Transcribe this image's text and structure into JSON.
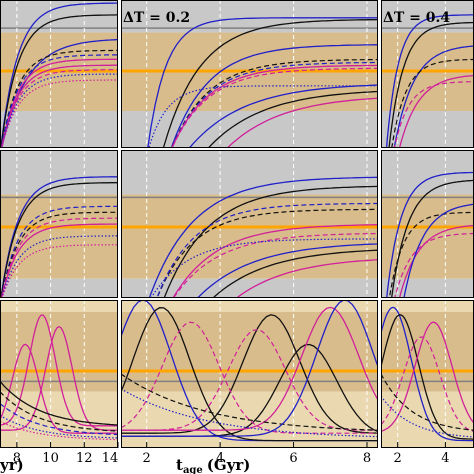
{
  "figure": {
    "x_axis_label": "t",
    "x_axis_label_sub": "age",
    "x_axis_label_unit": "(Gyr)",
    "left_partial_label": "yr)"
  },
  "colors": {
    "band_tan": "#d9bc8c",
    "band_grey": "#c8c8c8",
    "band_light": "#ead9b0",
    "orange_line": "#ffa500",
    "blue": "#2020c8",
    "black": "#111111",
    "magenta": "#d0209a",
    "dashed_vline": "#ffffff",
    "grey_line": "#808080"
  },
  "chart_data": [
    {
      "type": "line",
      "panel": "row1-col1",
      "xlim": [
        7,
        14
      ],
      "xticks": [
        8,
        10,
        12,
        14
      ],
      "annotation": "",
      "bands": [
        {
          "from": 0.0,
          "to": 0.22,
          "kind": "grey"
        },
        {
          "from": 0.22,
          "to": 0.75,
          "kind": "tan"
        },
        {
          "from": 0.75,
          "to": 1.0,
          "kind": "grey"
        }
      ],
      "hline": 0.48,
      "hline2": 0.19,
      "series": [
        {
          "color": "blue",
          "style": "solid",
          "shape": "saturate",
          "level": 0.02,
          "rise": 7.0,
          "tau": 1.0
        },
        {
          "color": "black",
          "style": "solid",
          "shape": "saturate",
          "level": 0.1,
          "rise": 7.0,
          "tau": 1.0
        },
        {
          "color": "blue",
          "style": "solid",
          "shape": "saturate",
          "level": 0.26,
          "rise": 7.0,
          "tau": 1.5
        },
        {
          "color": "magenta",
          "style": "solid",
          "shape": "saturate",
          "level": 0.4,
          "rise": 7.0,
          "tau": 1.0
        },
        {
          "color": "magenta",
          "style": "solid",
          "shape": "saturate",
          "level": 0.44,
          "rise": 7.0,
          "tau": 1.0
        },
        {
          "color": "black",
          "style": "dashed",
          "shape": "saturate",
          "level": 0.34,
          "rise": 7.0,
          "tau": 1.0
        },
        {
          "color": "blue",
          "style": "dashed",
          "shape": "saturate",
          "level": 0.37,
          "rise": 7.0,
          "tau": 1.0
        },
        {
          "color": "magenta",
          "style": "dashed",
          "shape": "saturate",
          "level": 0.47,
          "rise": 7.0,
          "tau": 1.0
        },
        {
          "color": "blue",
          "style": "dotted",
          "shape": "saturate",
          "level": 0.5,
          "rise": 7.0,
          "tau": 1.0
        },
        {
          "color": "magenta",
          "style": "dotted",
          "shape": "saturate",
          "level": 0.54,
          "rise": 7.0,
          "tau": 1.0
        }
      ]
    },
    {
      "type": "line",
      "panel": "row1-col2",
      "xlim": [
        1.3,
        8.3
      ],
      "xticks": [
        2,
        4,
        6,
        8
      ],
      "annotation": "ΔT = 0.2",
      "bands": [
        {
          "from": 0.0,
          "to": 0.22,
          "kind": "grey"
        },
        {
          "from": 0.22,
          "to": 0.75,
          "kind": "tan"
        },
        {
          "from": 0.75,
          "to": 1.0,
          "kind": "grey"
        }
      ],
      "hline": 0.48,
      "hline2": 0.19,
      "series": [
        {
          "color": "blue",
          "style": "solid",
          "shape": "saturate",
          "level": 0.12,
          "rise": 2.0,
          "tau": 0.5
        },
        {
          "color": "black",
          "style": "solid",
          "shape": "saturate",
          "level": 0.13,
          "rise": 2.4,
          "tau": 1.0
        },
        {
          "color": "blue",
          "style": "solid",
          "shape": "saturate",
          "level": 0.3,
          "rise": 2.6,
          "tau": 1.0
        },
        {
          "color": "black",
          "style": "dashed",
          "shape": "saturate",
          "level": 0.4,
          "rise": 2.6,
          "tau": 1.0
        },
        {
          "color": "blue",
          "style": "dashed",
          "shape": "saturate",
          "level": 0.42,
          "rise": 2.6,
          "tau": 1.0
        },
        {
          "color": "magenta",
          "style": "dashed",
          "shape": "saturate",
          "level": 0.46,
          "rise": 2.6,
          "tau": 1.0
        },
        {
          "color": "magenta",
          "style": "solid",
          "shape": "saturate",
          "level": 0.44,
          "rise": 2.6,
          "tau": 1.0
        },
        {
          "color": "blue",
          "style": "solid",
          "shape": "saturate",
          "level": 0.56,
          "rise": 3.0,
          "tau": 1.5
        },
        {
          "color": "black",
          "style": "solid",
          "shape": "saturate",
          "level": 0.6,
          "rise": 3.5,
          "tau": 1.5
        },
        {
          "color": "magenta",
          "style": "solid",
          "shape": "saturate",
          "level": 0.64,
          "rise": 4.0,
          "tau": 1.5
        },
        {
          "color": "blue",
          "style": "dotted",
          "shape": "saturate",
          "level": 0.58,
          "rise": 2.0,
          "tau": 0.5
        }
      ]
    },
    {
      "type": "line",
      "panel": "row1-col3",
      "xlim": [
        1.3,
        5.2
      ],
      "xticks": [
        2,
        4
      ],
      "annotation": "ΔT = 0.4",
      "bands": [
        {
          "from": 0.0,
          "to": 0.22,
          "kind": "grey"
        },
        {
          "from": 0.22,
          "to": 0.75,
          "kind": "tan"
        },
        {
          "from": 0.75,
          "to": 1.0,
          "kind": "grey"
        }
      ],
      "hline": 0.48,
      "hline2": 0.19,
      "series": [
        {
          "color": "blue",
          "style": "solid",
          "shape": "saturate",
          "level": 0.1,
          "rise": 1.5,
          "tau": 0.5
        },
        {
          "color": "black",
          "style": "solid",
          "shape": "saturate",
          "level": 0.15,
          "rise": 1.6,
          "tau": 0.6
        },
        {
          "color": "blue",
          "style": "solid",
          "shape": "saturate",
          "level": 0.3,
          "rise": 1.8,
          "tau": 0.8
        },
        {
          "color": "black",
          "style": "dashed",
          "shape": "saturate",
          "level": 0.4,
          "rise": 1.7,
          "tau": 0.6
        },
        {
          "color": "magenta",
          "style": "solid",
          "shape": "saturate",
          "level": 0.5,
          "rise": 2.0,
          "tau": 0.8
        },
        {
          "color": "magenta",
          "style": "dashed",
          "shape": "saturate",
          "level": 0.55,
          "rise": 1.8,
          "tau": 0.6
        }
      ]
    },
    {
      "type": "line",
      "panel": "row2-col1",
      "xlim": [
        7,
        14
      ],
      "xticks": [
        8,
        10,
        12,
        14
      ],
      "annotation": "",
      "bands": [
        {
          "from": 0.0,
          "to": 0.3,
          "kind": "grey"
        },
        {
          "from": 0.3,
          "to": 0.87,
          "kind": "tan"
        },
        {
          "from": 0.87,
          "to": 1.0,
          "kind": "grey"
        }
      ],
      "hline": 0.52,
      "hline2": 0.32,
      "series": [
        {
          "color": "blue",
          "style": "solid",
          "shape": "saturate",
          "level": 0.18,
          "rise": 7.0,
          "tau": 1.0
        },
        {
          "color": "black",
          "style": "solid",
          "shape": "saturate",
          "level": 0.22,
          "rise": 7.0,
          "tau": 1.0
        },
        {
          "color": "blue",
          "style": "dashed",
          "shape": "saturate",
          "level": 0.38,
          "rise": 7.0,
          "tau": 1.0
        },
        {
          "color": "black",
          "style": "dashed",
          "shape": "saturate",
          "level": 0.42,
          "rise": 7.0,
          "tau": 1.0
        },
        {
          "color": "magenta",
          "style": "solid",
          "shape": "saturate",
          "level": 0.5,
          "rise": 7.0,
          "tau": 1.0
        },
        {
          "color": "magenta",
          "style": "dashed",
          "shape": "saturate",
          "level": 0.46,
          "rise": 7.0,
          "tau": 1.0
        },
        {
          "color": "blue",
          "style": "dotted",
          "shape": "saturate",
          "level": 0.58,
          "rise": 7.0,
          "tau": 1.0
        },
        {
          "color": "magenta",
          "style": "dotted",
          "shape": "saturate",
          "level": 0.64,
          "rise": 7.0,
          "tau": 1.0
        }
      ]
    },
    {
      "type": "line",
      "panel": "row2-col2",
      "xlim": [
        1.3,
        8.3
      ],
      "xticks": [
        2,
        4,
        6,
        8
      ],
      "annotation": "",
      "bands": [
        {
          "from": 0.0,
          "to": 0.3,
          "kind": "grey"
        },
        {
          "from": 0.3,
          "to": 0.87,
          "kind": "tan"
        },
        {
          "from": 0.87,
          "to": 1.0,
          "kind": "grey"
        }
      ],
      "hline": 0.52,
      "hline2": 0.32,
      "series": [
        {
          "color": "blue",
          "style": "solid",
          "shape": "saturate",
          "level": 0.18,
          "rise": 2.0,
          "tau": 1.2
        },
        {
          "color": "black",
          "style": "solid",
          "shape": "saturate",
          "level": 0.24,
          "rise": 2.4,
          "tau": 1.2
        },
        {
          "color": "black",
          "style": "dashed",
          "shape": "saturate",
          "level": 0.4,
          "rise": 2.2,
          "tau": 1.0
        },
        {
          "color": "blue",
          "style": "dashed",
          "shape": "saturate",
          "level": 0.36,
          "rise": 2.2,
          "tau": 1.0
        },
        {
          "color": "magenta",
          "style": "solid",
          "shape": "saturate",
          "level": 0.5,
          "rise": 2.6,
          "tau": 1.2
        },
        {
          "color": "magenta",
          "style": "dashed",
          "shape": "saturate",
          "level": 0.56,
          "rise": 2.6,
          "tau": 1.2
        },
        {
          "color": "blue",
          "style": "solid",
          "shape": "saturate",
          "level": 0.62,
          "rise": 3.2,
          "tau": 1.5
        },
        {
          "color": "black",
          "style": "solid",
          "shape": "saturate",
          "level": 0.66,
          "rise": 3.6,
          "tau": 1.5
        },
        {
          "color": "magenta",
          "style": "solid",
          "shape": "saturate",
          "level": 0.72,
          "rise": 4.2,
          "tau": 1.5
        },
        {
          "color": "blue",
          "style": "dotted",
          "shape": "saturate",
          "level": 0.6,
          "rise": 2.0,
          "tau": 1.0
        }
      ]
    },
    {
      "type": "line",
      "panel": "row2-col3",
      "xlim": [
        1.3,
        5.2
      ],
      "xticks": [
        2,
        4
      ],
      "annotation": "",
      "bands": [
        {
          "from": 0.0,
          "to": 0.3,
          "kind": "grey"
        },
        {
          "from": 0.3,
          "to": 0.87,
          "kind": "tan"
        },
        {
          "from": 0.87,
          "to": 1.0,
          "kind": "grey"
        }
      ],
      "hline": 0.52,
      "hline2": 0.32,
      "series": [
        {
          "color": "blue",
          "style": "solid",
          "shape": "saturate",
          "level": 0.15,
          "rise": 1.5,
          "tau": 0.6
        },
        {
          "color": "black",
          "style": "solid",
          "shape": "saturate",
          "level": 0.2,
          "rise": 1.7,
          "tau": 0.7
        },
        {
          "color": "black",
          "style": "dashed",
          "shape": "saturate",
          "level": 0.42,
          "rise": 1.6,
          "tau": 0.6
        },
        {
          "color": "magenta",
          "style": "solid",
          "shape": "saturate",
          "level": 0.5,
          "rise": 2.0,
          "tau": 0.8
        },
        {
          "color": "magenta",
          "style": "dashed",
          "shape": "saturate",
          "level": 0.56,
          "rise": 1.8,
          "tau": 0.7
        },
        {
          "color": "blue",
          "style": "solid",
          "shape": "saturate",
          "level": 0.35,
          "rise": 2.2,
          "tau": 0.8
        }
      ]
    },
    {
      "type": "line",
      "panel": "row3-col1",
      "xlim": [
        7,
        14
      ],
      "xticks": [
        8,
        10,
        12,
        14
      ],
      "annotation": "",
      "bands": [
        {
          "from": 0.0,
          "to": 0.08,
          "kind": "light"
        },
        {
          "from": 0.08,
          "to": 0.62,
          "kind": "tan"
        },
        {
          "from": 0.62,
          "to": 1.0,
          "kind": "light"
        }
      ],
      "hline": 0.48,
      "hline2": 0.55,
      "series": [
        {
          "color": "magenta",
          "style": "solid",
          "shape": "peak",
          "peak": 9.5,
          "height": 0.1,
          "base": 0.85
        },
        {
          "color": "magenta",
          "style": "solid",
          "shape": "peak",
          "peak": 10.5,
          "height": 0.18,
          "base": 0.88
        },
        {
          "color": "magenta",
          "style": "solid",
          "shape": "peak",
          "peak": 8.5,
          "height": 0.3,
          "base": 0.9
        },
        {
          "color": "black",
          "style": "solid",
          "shape": "decay",
          "start": 0.55,
          "end": 0.86
        },
        {
          "color": "black",
          "style": "dashed",
          "shape": "decay",
          "start": 0.62,
          "end": 0.9
        },
        {
          "color": "blue",
          "style": "dashed",
          "shape": "decay",
          "start": 0.7,
          "end": 0.92
        },
        {
          "color": "blue",
          "style": "dotted",
          "shape": "decay",
          "start": 0.78,
          "end": 0.94
        },
        {
          "color": "magenta",
          "style": "dotted",
          "shape": "decay",
          "start": 0.82,
          "end": 0.95
        }
      ]
    },
    {
      "type": "line",
      "panel": "row3-col2",
      "xlim": [
        1.3,
        8.3
      ],
      "xticks": [
        2,
        4,
        6,
        8
      ],
      "annotation": "",
      "bands": [
        {
          "from": 0.0,
          "to": 0.08,
          "kind": "light"
        },
        {
          "from": 0.08,
          "to": 0.62,
          "kind": "tan"
        },
        {
          "from": 0.62,
          "to": 1.0,
          "kind": "light"
        }
      ],
      "hline": 0.48,
      "hline2": 0.55,
      "series": [
        {
          "color": "blue",
          "style": "solid",
          "shape": "peak",
          "peak": 1.9,
          "height": 0.0,
          "base": 0.95
        },
        {
          "color": "black",
          "style": "solid",
          "shape": "peak",
          "peak": 2.4,
          "height": 0.05,
          "base": 0.95
        },
        {
          "color": "black",
          "style": "solid",
          "shape": "peak",
          "peak": 5.4,
          "height": 0.1,
          "base": 0.9
        },
        {
          "color": "black",
          "style": "solid",
          "shape": "peak",
          "peak": 6.4,
          "height": 0.3,
          "base": 0.92
        },
        {
          "color": "magenta",
          "style": "solid",
          "shape": "peak",
          "peak": 7.0,
          "height": 0.05,
          "base": 0.88
        },
        {
          "color": "magenta",
          "style": "dashed",
          "shape": "peak",
          "peak": 3.2,
          "height": 0.15,
          "base": 0.9
        },
        {
          "color": "magenta",
          "style": "dashed",
          "shape": "peak",
          "peak": 5.0,
          "height": 0.2,
          "base": 0.88
        },
        {
          "color": "black",
          "style": "dashed",
          "shape": "decay",
          "start": 0.5,
          "end": 0.9
        },
        {
          "color": "blue",
          "style": "dotted",
          "shape": "decay",
          "start": 0.6,
          "end": 0.94
        },
        {
          "color": "blue",
          "style": "solid",
          "shape": "peak",
          "peak": 7.4,
          "height": 0.0,
          "base": 0.92
        }
      ]
    },
    {
      "type": "line",
      "panel": "row3-col3",
      "xlim": [
        1.3,
        5.2
      ],
      "xticks": [
        2,
        4
      ],
      "annotation": "",
      "bands": [
        {
          "from": 0.0,
          "to": 0.08,
          "kind": "light"
        },
        {
          "from": 0.08,
          "to": 0.62,
          "kind": "tan"
        },
        {
          "from": 0.62,
          "to": 1.0,
          "kind": "light"
        }
      ],
      "hline": 0.48,
      "hline2": 0.55,
      "series": [
        {
          "color": "blue",
          "style": "solid",
          "shape": "peak",
          "peak": 1.8,
          "height": 0.05,
          "base": 0.95
        },
        {
          "color": "black",
          "style": "solid",
          "shape": "peak",
          "peak": 2.1,
          "height": 0.1,
          "base": 0.94
        },
        {
          "color": "magenta",
          "style": "solid",
          "shape": "peak",
          "peak": 3.5,
          "height": 0.15,
          "base": 0.9
        },
        {
          "color": "magenta",
          "style": "dashed",
          "shape": "peak",
          "peak": 3.0,
          "height": 0.25,
          "base": 0.9
        },
        {
          "color": "black",
          "style": "dashed",
          "shape": "decay",
          "start": 0.5,
          "end": 0.9
        },
        {
          "color": "blue",
          "style": "dotted",
          "shape": "decay",
          "start": 0.65,
          "end": 0.94
        }
      ]
    }
  ]
}
